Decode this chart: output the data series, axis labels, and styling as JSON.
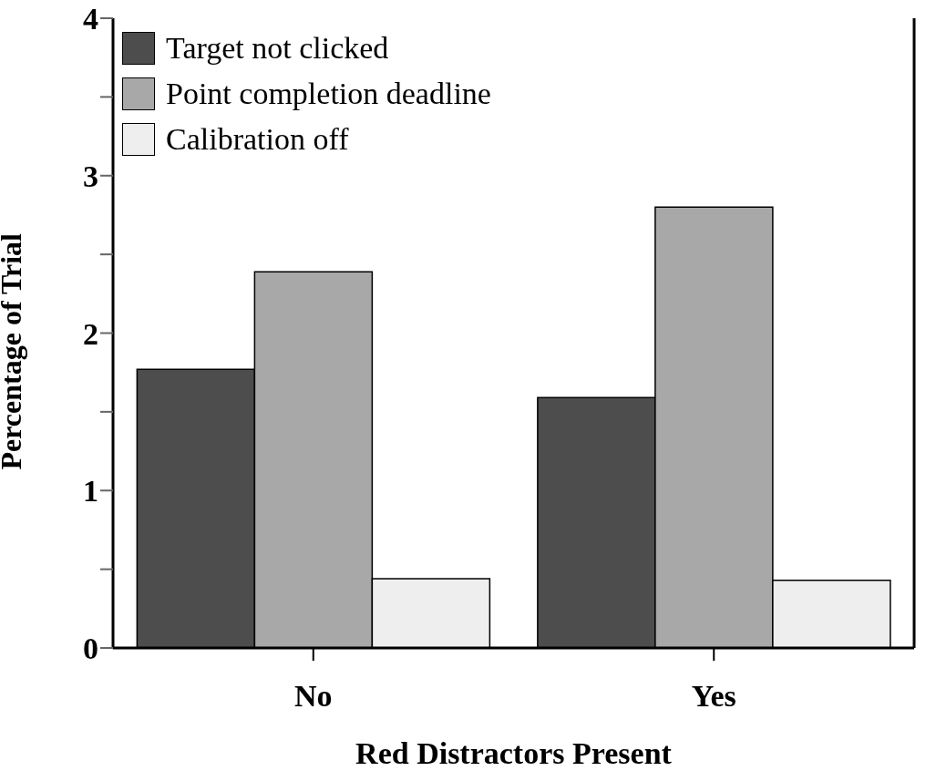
{
  "chart_data": {
    "type": "bar",
    "xlabel": "Red Distractors Present",
    "ylabel": "Percentage of Trial",
    "categories": [
      "No",
      "Yes"
    ],
    "series": [
      {
        "name": "Target not clicked",
        "color": "#4d4d4d",
        "values": [
          1.77,
          1.59
        ]
      },
      {
        "name": "Point completion deadline",
        "color": "#a8a8a8",
        "values": [
          2.39,
          2.8
        ]
      },
      {
        "name": "Calibration off",
        "color": "#eeeeee",
        "values": [
          0.44,
          0.43
        ]
      }
    ],
    "ylim": [
      0,
      4
    ],
    "yticks": [
      0,
      {
        "value": 0.5,
        "label": null
      },
      1,
      {
        "value": 1.5,
        "label": null
      },
      2,
      {
        "value": 2.5,
        "label": null
      },
      3,
      {
        "value": 3.5,
        "label": null
      },
      4
    ],
    "legend": "top left",
    "grid": false
  }
}
